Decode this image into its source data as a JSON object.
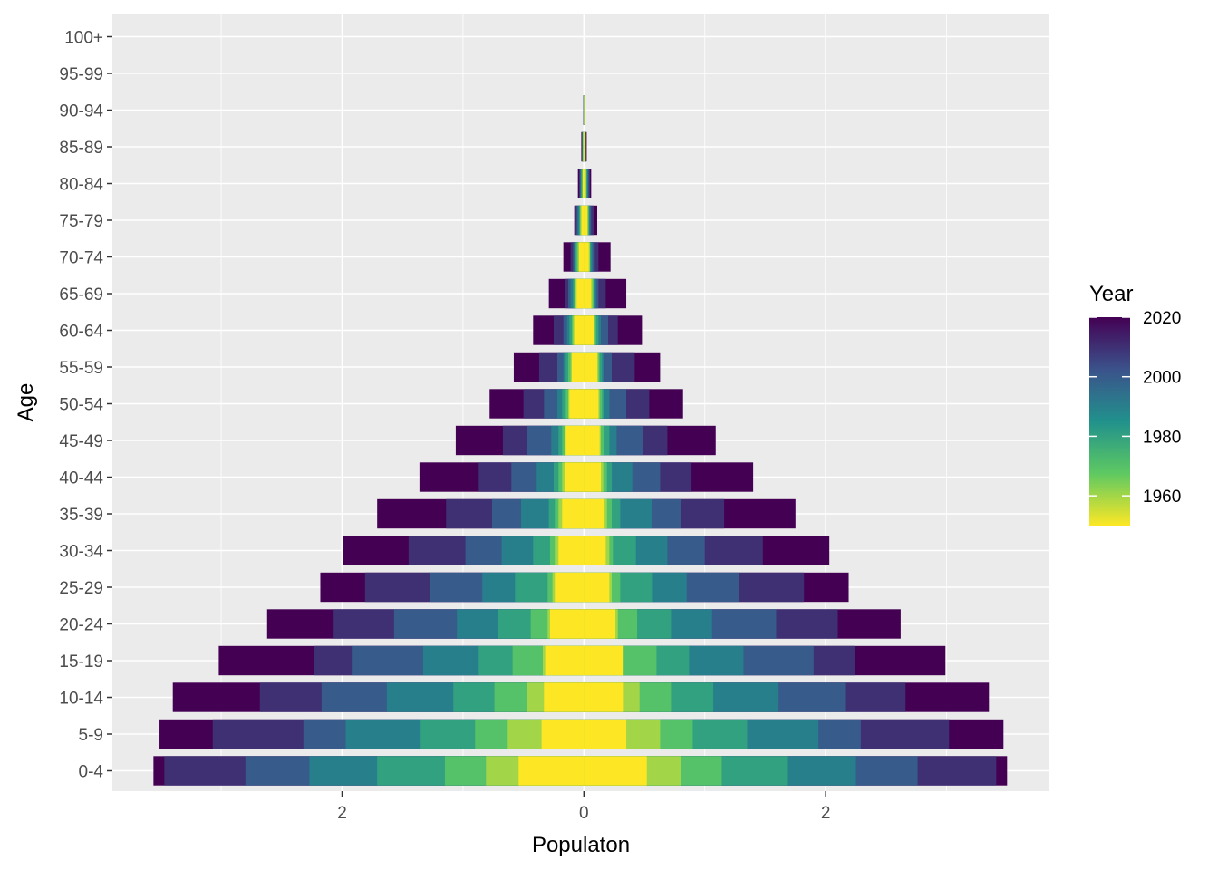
{
  "chart_data": {
    "type": "bar",
    "orientation": "horizontal",
    "subtype": "population-pyramid",
    "xlabel": "Populaton",
    "ylabel": "Age",
    "x_ticks": [
      {
        "value": -2,
        "label": "2"
      },
      {
        "value": 0,
        "label": "0"
      },
      {
        "value": 2,
        "label": "2"
      }
    ],
    "xlim": [
      -3.9,
      3.85
    ],
    "grid": true,
    "legend": {
      "title": "Year",
      "type": "colorbar",
      "range": [
        1950,
        2020
      ],
      "ticks": [
        1960,
        1980,
        2000,
        2020
      ],
      "position": "right",
      "palette": [
        "#fde725",
        "#5ec962",
        "#21918c",
        "#3b528b",
        "#440154"
      ]
    },
    "categories": [
      "0-4",
      "5-9",
      "10-14",
      "15-19",
      "20-24",
      "25-29",
      "30-34",
      "35-39",
      "40-44",
      "45-49",
      "50-54",
      "55-59",
      "60-64",
      "65-69",
      "70-74",
      "75-79",
      "80-84",
      "85-89",
      "90-94",
      "95-99",
      "100+"
    ],
    "years": [
      1950,
      1960,
      1970,
      1980,
      1990,
      2000,
      2010,
      2020
    ],
    "left_side_cumulative": [
      [
        0.54,
        0.81,
        1.15,
        1.71,
        2.27,
        2.8,
        3.47,
        3.56
      ],
      [
        0.35,
        0.63,
        0.9,
        1.35,
        1.97,
        2.32,
        3.07,
        3.51
      ],
      [
        0.33,
        0.47,
        0.74,
        1.08,
        1.63,
        2.17,
        2.68,
        3.4
      ],
      [
        0.32,
        0.34,
        0.59,
        0.87,
        1.33,
        1.92,
        2.23,
        3.02
      ],
      [
        0.28,
        0.3,
        0.44,
        0.71,
        1.05,
        1.57,
        2.07,
        2.62
      ],
      [
        0.24,
        0.26,
        0.3,
        0.57,
        0.84,
        1.27,
        1.81,
        2.18
      ],
      [
        0.21,
        0.24,
        0.28,
        0.42,
        0.68,
        0.98,
        1.45,
        1.99
      ],
      [
        0.18,
        0.21,
        0.24,
        0.29,
        0.52,
        0.76,
        1.14,
        1.71
      ],
      [
        0.16,
        0.18,
        0.21,
        0.25,
        0.39,
        0.6,
        0.87,
        1.36
      ],
      [
        0.15,
        0.16,
        0.18,
        0.21,
        0.27,
        0.47,
        0.67,
        1.06
      ],
      [
        0.12,
        0.13,
        0.15,
        0.18,
        0.22,
        0.33,
        0.5,
        0.78
      ],
      [
        0.1,
        0.11,
        0.13,
        0.15,
        0.17,
        0.22,
        0.37,
        0.58
      ],
      [
        0.08,
        0.09,
        0.1,
        0.12,
        0.14,
        0.17,
        0.25,
        0.42
      ],
      [
        0.06,
        0.07,
        0.08,
        0.09,
        0.11,
        0.13,
        0.16,
        0.29
      ],
      [
        0.04,
        0.05,
        0.06,
        0.07,
        0.08,
        0.09,
        0.11,
        0.17
      ],
      [
        0.02,
        0.03,
        0.03,
        0.04,
        0.05,
        0.06,
        0.07,
        0.08
      ],
      [
        0.01,
        0.01,
        0.02,
        0.02,
        0.03,
        0.03,
        0.04,
        0.05
      ],
      [
        0.005,
        0.007,
        0.009,
        0.011,
        0.013,
        0.015,
        0.018,
        0.022
      ],
      [
        0.002,
        0.002,
        0.003,
        0.003,
        0.004,
        0.004,
        0.005,
        0.006
      ],
      [
        0,
        0,
        0,
        0,
        0,
        0,
        0,
        0
      ],
      [
        0,
        0,
        0,
        0,
        0,
        0,
        0,
        0
      ]
    ],
    "right_side_cumulative": [
      [
        0.52,
        0.8,
        1.14,
        1.68,
        2.25,
        2.76,
        3.41,
        3.5
      ],
      [
        0.35,
        0.63,
        0.9,
        1.35,
        1.94,
        2.29,
        3.02,
        3.47
      ],
      [
        0.33,
        0.46,
        0.72,
        1.07,
        1.61,
        2.16,
        2.66,
        3.35
      ],
      [
        0.32,
        0.33,
        0.6,
        0.87,
        1.32,
        1.9,
        2.24,
        2.99
      ],
      [
        0.26,
        0.28,
        0.44,
        0.72,
        1.06,
        1.59,
        2.1,
        2.62
      ],
      [
        0.21,
        0.23,
        0.3,
        0.57,
        0.85,
        1.28,
        1.82,
        2.19
      ],
      [
        0.18,
        0.21,
        0.24,
        0.43,
        0.69,
        1.0,
        1.48,
        2.03
      ],
      [
        0.17,
        0.19,
        0.23,
        0.3,
        0.56,
        0.8,
        1.16,
        1.75
      ],
      [
        0.14,
        0.16,
        0.19,
        0.23,
        0.4,
        0.63,
        0.89,
        1.4
      ],
      [
        0.13,
        0.14,
        0.17,
        0.21,
        0.27,
        0.49,
        0.69,
        1.09
      ],
      [
        0.12,
        0.13,
        0.15,
        0.17,
        0.21,
        0.35,
        0.54,
        0.82
      ],
      [
        0.11,
        0.12,
        0.13,
        0.15,
        0.17,
        0.23,
        0.42,
        0.63
      ],
      [
        0.08,
        0.09,
        0.1,
        0.12,
        0.14,
        0.2,
        0.28,
        0.48
      ],
      [
        0.06,
        0.07,
        0.08,
        0.09,
        0.1,
        0.12,
        0.18,
        0.35
      ],
      [
        0.04,
        0.05,
        0.05,
        0.06,
        0.07,
        0.09,
        0.12,
        0.22
      ],
      [
        0.03,
        0.03,
        0.04,
        0.04,
        0.05,
        0.06,
        0.08,
        0.11
      ],
      [
        0.01,
        0.02,
        0.02,
        0.03,
        0.03,
        0.04,
        0.05,
        0.06
      ],
      [
        0.006,
        0.008,
        0.01,
        0.012,
        0.014,
        0.016,
        0.019,
        0.023
      ],
      [
        0.002,
        0.002,
        0.003,
        0.003,
        0.004,
        0.004,
        0.005,
        0.006
      ],
      [
        0,
        0,
        0,
        0,
        0,
        0,
        0,
        0
      ],
      [
        0,
        0,
        0,
        0,
        0,
        0,
        0,
        0
      ]
    ]
  }
}
